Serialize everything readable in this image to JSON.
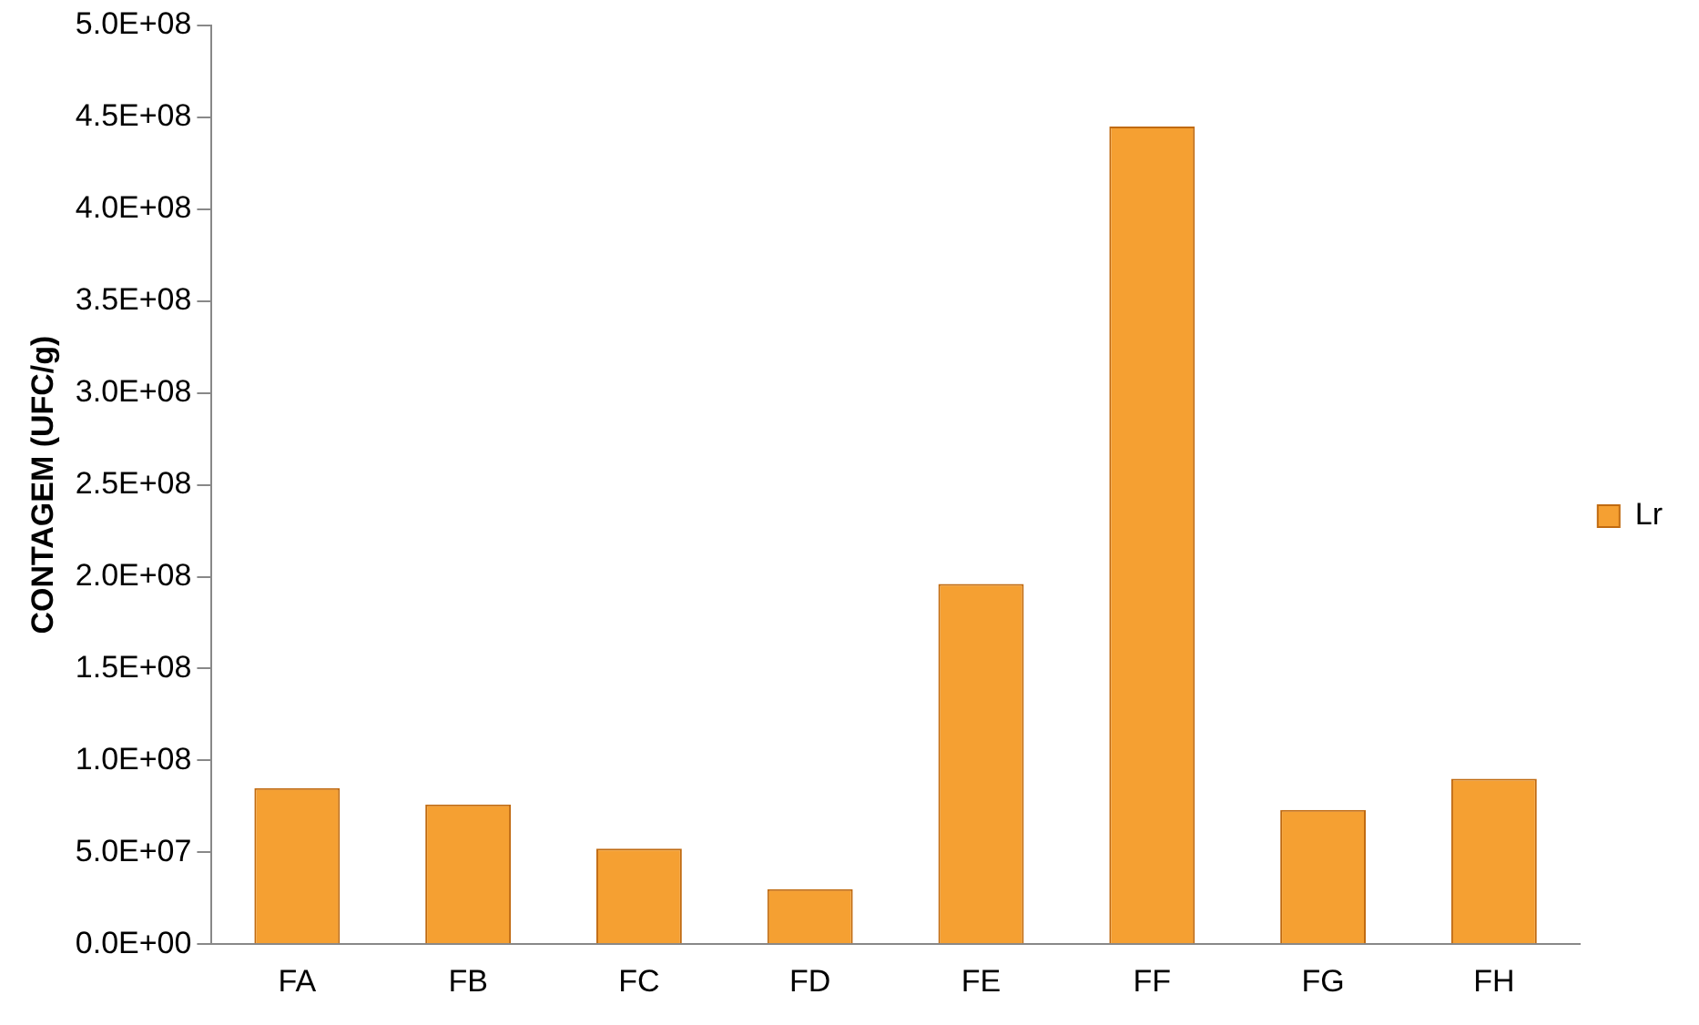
{
  "chart_data": {
    "type": "bar",
    "ylabel": "CONTAGEM (UFC/g)",
    "categories": [
      "FA",
      "FB",
      "FC",
      "FD",
      "FE",
      "FF",
      "FG",
      "FH"
    ],
    "series": [
      {
        "name": "Lr",
        "color": "#f5a032",
        "values": [
          85000000,
          76000000,
          52000000,
          30000000,
          196000000,
          445000000,
          73000000,
          90000000
        ]
      }
    ],
    "ylim": [
      0,
      500000000
    ],
    "yticks": [
      {
        "value": 0,
        "label": "0.0E+00"
      },
      {
        "value": 50000000,
        "label": "5.0E+07"
      },
      {
        "value": 100000000,
        "label": "1.0E+08"
      },
      {
        "value": 150000000,
        "label": "1.5E+08"
      },
      {
        "value": 200000000,
        "label": "2.0E+08"
      },
      {
        "value": 250000000,
        "label": "2.5E+08"
      },
      {
        "value": 300000000,
        "label": "3.0E+08"
      },
      {
        "value": 350000000,
        "label": "3.5E+08"
      },
      {
        "value": 400000000,
        "label": "4.0E+08"
      },
      {
        "value": 450000000,
        "label": "4.5E+08"
      },
      {
        "value": 500000000,
        "label": "5.0E+08"
      }
    ],
    "grid": false,
    "legend": "right"
  }
}
